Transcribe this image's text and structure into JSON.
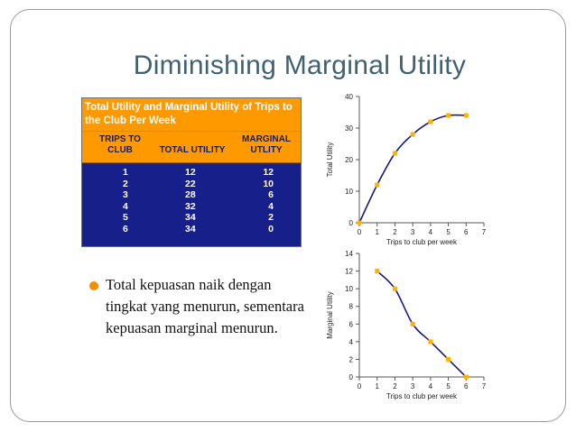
{
  "slide": {
    "title": "Diminishing Marginal Utility",
    "bullet": "Total kepuasan naik dengan tingkat yang menurun, sementara kepuasan marginal menurun."
  },
  "table": {
    "heading": "Total Utility and Marginal Utility of Trips to the Club Per Week",
    "col_trips_line1": "TRIPS TO",
    "col_trips_line2": "CLUB",
    "col_total": "TOTAL UTILITY",
    "col_marginal_line1": "MARGINAL",
    "col_marginal_line2": "UTLITY",
    "rows": [
      {
        "trips": "1",
        "total": "12",
        "marginal": "12"
      },
      {
        "trips": "2",
        "total": "22",
        "marginal": "10"
      },
      {
        "trips": "3",
        "total": "28",
        "marginal": "6"
      },
      {
        "trips": "4",
        "total": "32",
        "marginal": "4"
      },
      {
        "trips": "5",
        "total": "34",
        "marginal": "2"
      },
      {
        "trips": "6",
        "total": "34",
        "marginal": "0"
      }
    ]
  },
  "colors": {
    "title": "#3f6171",
    "table_header": "#ff9900",
    "table_body": "#17208a",
    "line": "#1a1a7a",
    "marker": "#ffb000",
    "bullet": "#f09000"
  },
  "chart_data": [
    {
      "type": "line",
      "xlabel": "Trips to club per week",
      "ylabel": "Total Utility",
      "xlim": [
        0,
        7
      ],
      "ylim": [
        0,
        40
      ],
      "x_ticks": [
        "0",
        "1",
        "2",
        "3",
        "4",
        "5",
        "6",
        "7"
      ],
      "y_ticks": [
        "0",
        "10",
        "20",
        "30",
        "40"
      ],
      "x": [
        0,
        1,
        2,
        3,
        4,
        5,
        6
      ],
      "values": [
        0,
        12,
        22,
        28,
        32,
        34,
        34
      ],
      "grid": false
    },
    {
      "type": "line",
      "xlabel": "Trips to club per week",
      "ylabel": "Marginal Utility",
      "xlim": [
        0,
        7
      ],
      "ylim": [
        0,
        14
      ],
      "x_ticks": [
        "0",
        "1",
        "2",
        "3",
        "4",
        "5",
        "6",
        "7"
      ],
      "y_ticks": [
        "0",
        "2",
        "4",
        "6",
        "8",
        "10",
        "12",
        "14"
      ],
      "x": [
        1,
        2,
        3,
        4,
        5,
        6
      ],
      "values": [
        12,
        10,
        6,
        4,
        2,
        0
      ],
      "grid": false
    }
  ]
}
